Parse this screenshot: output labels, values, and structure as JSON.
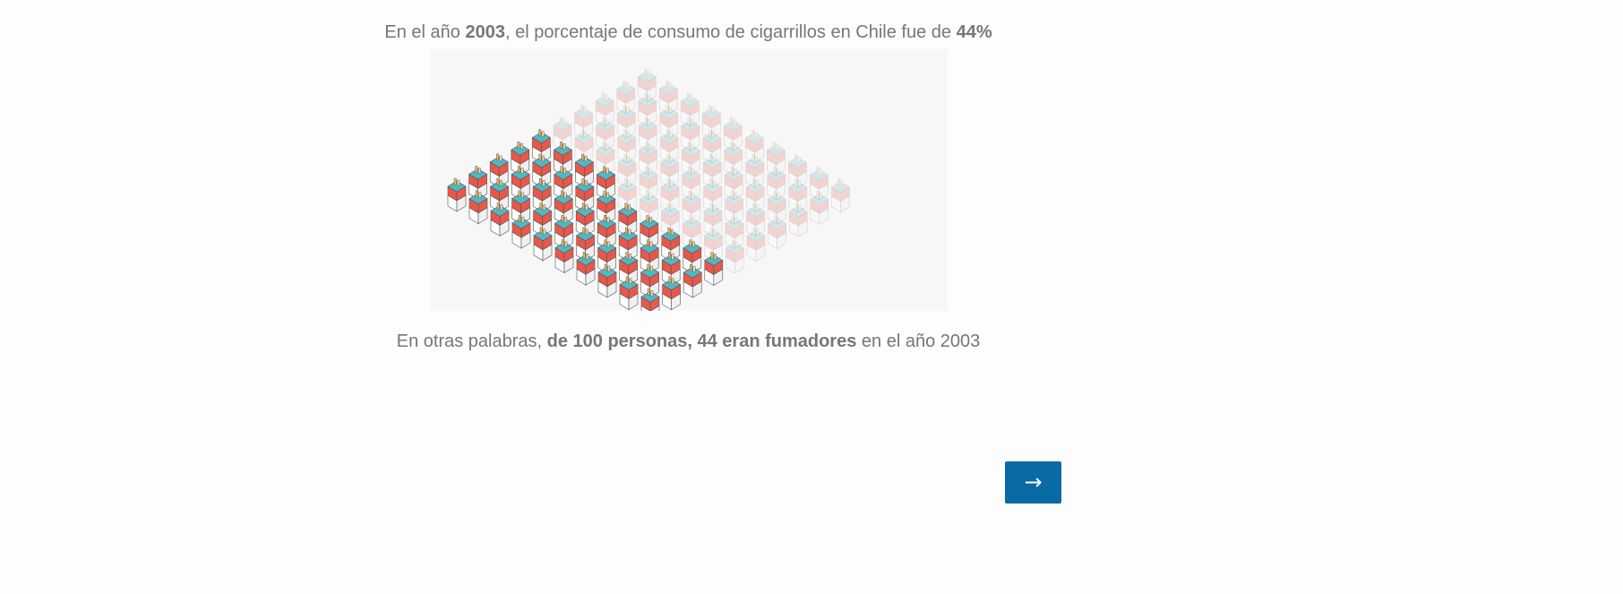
{
  "headline": {
    "prefix": "En el año ",
    "year": "2003",
    "middle": ", el porcentaje de consumo de cigarrillos en Chile fue de ",
    "percent": "44%"
  },
  "subline": {
    "prefix": "En otras palabras, ",
    "emphasis": "de 100 personas, 44 eran fumadores",
    "suffix": " en el año 2003"
  },
  "chart_data": {
    "type": "unit-icon-grid",
    "total": 100,
    "highlighted": 44,
    "unit_icon": "cigarette-pack-icon",
    "colors": {
      "highlighted": "#e8584a",
      "faded": "#f4d6d3",
      "accent": "#4fb8c4"
    }
  },
  "next_button": {
    "label": "→"
  },
  "colors": {
    "text": "#777777",
    "button_bg": "#0a6aa4",
    "panel_bg": "#f7f7f7"
  }
}
